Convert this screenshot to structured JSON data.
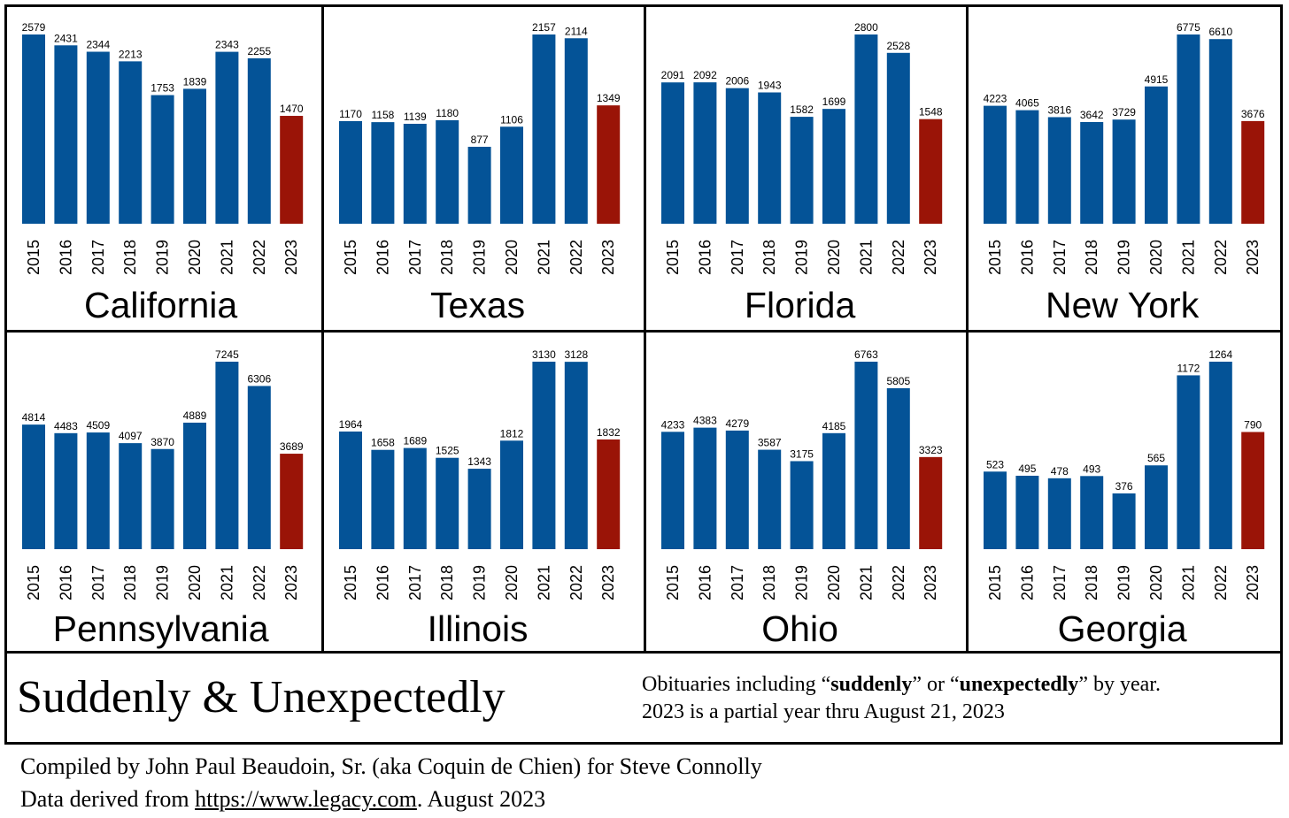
{
  "colors": {
    "past_bar": "#045397",
    "partial_bar": "#9a1407",
    "border": "#000000"
  },
  "chart_data": [
    {
      "type": "bar",
      "title": "California",
      "categories": [
        "2015",
        "2016",
        "2017",
        "2018",
        "2019",
        "2020",
        "2021",
        "2022",
        "2023"
      ],
      "values": [
        2579,
        2431,
        2344,
        2213,
        1753,
        1839,
        2343,
        2255,
        1470
      ]
    },
    {
      "type": "bar",
      "title": "Texas",
      "categories": [
        "2015",
        "2016",
        "2017",
        "2018",
        "2019",
        "2020",
        "2021",
        "2022",
        "2023"
      ],
      "values": [
        1170,
        1158,
        1139,
        1180,
        877,
        1106,
        2157,
        2114,
        1349
      ]
    },
    {
      "type": "bar",
      "title": "Florida",
      "categories": [
        "2015",
        "2016",
        "2017",
        "2018",
        "2019",
        "2020",
        "2021",
        "2022",
        "2023"
      ],
      "values": [
        2091,
        2092,
        2006,
        1943,
        1582,
        1699,
        2800,
        2528,
        1548
      ]
    },
    {
      "type": "bar",
      "title": "New York",
      "categories": [
        "2015",
        "2016",
        "2017",
        "2018",
        "2019",
        "2020",
        "2021",
        "2022",
        "2023"
      ],
      "values": [
        4223,
        4065,
        3816,
        3642,
        3729,
        4915,
        6775,
        6610,
        3676
      ]
    },
    {
      "type": "bar",
      "title": "Pennsylvania",
      "categories": [
        "2015",
        "2016",
        "2017",
        "2018",
        "2019",
        "2020",
        "2021",
        "2022",
        "2023"
      ],
      "values": [
        4814,
        4483,
        4509,
        4097,
        3870,
        4889,
        7245,
        6306,
        3689
      ]
    },
    {
      "type": "bar",
      "title": "Illinois",
      "categories": [
        "2015",
        "2016",
        "2017",
        "2018",
        "2019",
        "2020",
        "2021",
        "2022",
        "2023"
      ],
      "values": [
        1964,
        1658,
        1689,
        1525,
        1343,
        1812,
        3130,
        3128,
        1832
      ]
    },
    {
      "type": "bar",
      "title": "Ohio",
      "categories": [
        "2015",
        "2016",
        "2017",
        "2018",
        "2019",
        "2020",
        "2021",
        "2022",
        "2023"
      ],
      "values": [
        4233,
        4383,
        4279,
        3587,
        3175,
        4185,
        6763,
        5805,
        3323
      ]
    },
    {
      "type": "bar",
      "title": "Georgia",
      "categories": [
        "2015",
        "2016",
        "2017",
        "2018",
        "2019",
        "2020",
        "2021",
        "2022",
        "2023"
      ],
      "values": [
        523,
        495,
        478,
        493,
        376,
        565,
        1172,
        1264,
        790
      ]
    }
  ],
  "caption": {
    "title": "Suddenly & Unexpectedly",
    "line1_prefix": "Obituaries including “",
    "line1_word1": "suddenly",
    "line1_middle": "” or “",
    "line1_word2": "unexpectedly",
    "line1_suffix": "” by year.",
    "line2": "2023 is a partial year thru August 21, 2023"
  },
  "credits": {
    "line1": "Compiled by John Paul Beaudoin, Sr. (aka Coquin de Chien) for Steve Connolly",
    "line2_prefix": "Data derived from ",
    "line2_link": "https://www.legacy.com",
    "line2_suffix": ". August 2023"
  }
}
